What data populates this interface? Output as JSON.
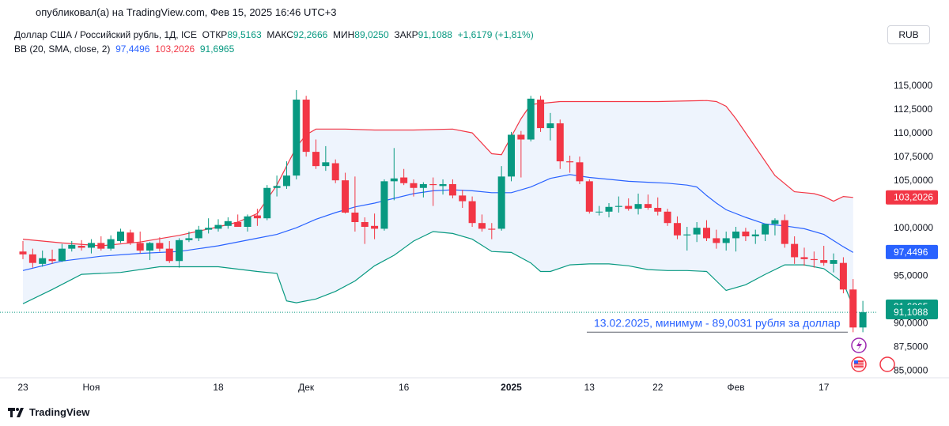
{
  "header": {
    "published": "опубликовал(а) на TradingView.com, Фев 15, 2025 16:46 UTC+3",
    "symbol": "Доллар США / Российский рубль, 1Д, ICE",
    "open_label": "ОТКР",
    "open": "89,5163",
    "high_label": "МАКС",
    "high": "92,2666",
    "low_label": "МИН",
    "low": "89,0250",
    "close_label": "ЗАКР",
    "close": "91,1088",
    "change": "+1,6179 (+1,81%)",
    "indicator": "BB (20, SMA, close, 2)",
    "bb_basis": "97,4496",
    "bb_upper": "103,2026",
    "bb_lower": "91,6965"
  },
  "currency": "RUB",
  "footer": {
    "brand": "TradingView"
  },
  "colors": {
    "up": "#089981",
    "down": "#f23645",
    "upper_band": "#f23645",
    "basis": "#2962ff",
    "lower_band": "#089981",
    "band_fill": "#eef4fd",
    "annotation": "#2962ff"
  },
  "chart_data": {
    "type": "candlestick",
    "x_tick_labels": [
      {
        "label": "23",
        "day": 0
      },
      {
        "label": "Ноя",
        "day": 7
      },
      {
        "label": "18",
        "day": 20
      },
      {
        "label": "Дек",
        "day": 29
      },
      {
        "label": "16",
        "day": 39
      },
      {
        "label": "2025",
        "day": 50
      },
      {
        "label": "13",
        "day": 58
      },
      {
        "label": "22",
        "day": 65
      },
      {
        "label": "Фев",
        "day": 73
      },
      {
        "label": "17",
        "day": 82
      }
    ],
    "y_ticks": [
      "115,0000",
      "112,5000",
      "110,0000",
      "107,5000",
      "105,0000",
      "100,0000",
      "95,0000",
      "90,0000",
      "87,5000",
      "85,0000"
    ],
    "y_tick_values": [
      115,
      112.5,
      110,
      107.5,
      105,
      100,
      95,
      90,
      87.5,
      85
    ],
    "ylim": [
      84.2,
      117.5
    ],
    "price_labels": [
      {
        "text": "103,2026",
        "value": 103.2026,
        "color": "#f23645"
      },
      {
        "text": "97,4496",
        "value": 97.4496,
        "color": "#2962ff"
      },
      {
        "text": "91,6965",
        "value": 91.6965,
        "color": "#089981"
      },
      {
        "text": "91,1088",
        "value": 91.1088,
        "color": "#089981"
      }
    ],
    "annotation": {
      "text": "13.02.2025, минимум - 89,0031 рубля за доллар",
      "value": 89.0031
    },
    "candles": [
      {
        "o": 97.5,
        "h": 98.6,
        "l": 96.7,
        "c": 97.2
      },
      {
        "o": 97.2,
        "h": 97.8,
        "l": 95.8,
        "c": 96.3
      },
      {
        "o": 96.2,
        "h": 97.6,
        "l": 95.9,
        "c": 96.8
      },
      {
        "o": 96.7,
        "h": 97.7,
        "l": 96.2,
        "c": 96.5
      },
      {
        "o": 96.5,
        "h": 98.3,
        "l": 96.4,
        "c": 97.8
      },
      {
        "o": 97.8,
        "h": 98.6,
        "l": 97.5,
        "c": 98.2
      },
      {
        "o": 98.1,
        "h": 98.7,
        "l": 97.6,
        "c": 97.9
      },
      {
        "o": 97.9,
        "h": 98.8,
        "l": 97.3,
        "c": 98.4
      },
      {
        "o": 98.4,
        "h": 99.1,
        "l": 97.6,
        "c": 97.8
      },
      {
        "o": 97.8,
        "h": 99.2,
        "l": 97.6,
        "c": 98.8
      },
      {
        "o": 98.6,
        "h": 99.9,
        "l": 98.4,
        "c": 99.6
      },
      {
        "o": 99.5,
        "h": 99.8,
        "l": 98.2,
        "c": 98.4
      },
      {
        "o": 98.4,
        "h": 99.6,
        "l": 97.3,
        "c": 97.6
      },
      {
        "o": 97.6,
        "h": 98.5,
        "l": 96.6,
        "c": 98.4
      },
      {
        "o": 98.4,
        "h": 99.0,
        "l": 97.5,
        "c": 97.8
      },
      {
        "o": 97.8,
        "h": 98.6,
        "l": 96.3,
        "c": 96.5
      },
      {
        "o": 96.5,
        "h": 98.9,
        "l": 95.8,
        "c": 98.7
      },
      {
        "o": 98.7,
        "h": 99.6,
        "l": 98.5,
        "c": 98.9
      },
      {
        "o": 98.9,
        "h": 100.2,
        "l": 98.6,
        "c": 99.8
      },
      {
        "o": 99.8,
        "h": 101.0,
        "l": 99.4,
        "c": 100.0
      },
      {
        "o": 99.9,
        "h": 100.9,
        "l": 99.6,
        "c": 100.3
      },
      {
        "o": 100.2,
        "h": 101.1,
        "l": 99.9,
        "c": 100.7
      },
      {
        "o": 100.6,
        "h": 101.4,
        "l": 100.2,
        "c": 100.1
      },
      {
        "o": 100.1,
        "h": 101.4,
        "l": 99.6,
        "c": 101.2
      },
      {
        "o": 101.3,
        "h": 102.0,
        "l": 100.2,
        "c": 101.0
      },
      {
        "o": 101.0,
        "h": 104.5,
        "l": 100.8,
        "c": 104.2
      },
      {
        "o": 104.2,
        "h": 105.5,
        "l": 103.3,
        "c": 104.4
      },
      {
        "o": 104.4,
        "h": 107.0,
        "l": 104.1,
        "c": 105.5
      },
      {
        "o": 105.5,
        "h": 114.5,
        "l": 105.1,
        "c": 113.5
      },
      {
        "o": 113.5,
        "h": 113.9,
        "l": 107.5,
        "c": 108.0
      },
      {
        "o": 108.0,
        "h": 109.3,
        "l": 106.2,
        "c": 106.5
      },
      {
        "o": 106.5,
        "h": 108.6,
        "l": 106.0,
        "c": 106.9
      },
      {
        "o": 106.8,
        "h": 107.2,
        "l": 104.7,
        "c": 105.0
      },
      {
        "o": 105.0,
        "h": 105.8,
        "l": 101.5,
        "c": 101.6
      },
      {
        "o": 101.6,
        "h": 105.4,
        "l": 99.6,
        "c": 100.6
      },
      {
        "o": 100.6,
        "h": 101.1,
        "l": 98.3,
        "c": 100.1
      },
      {
        "o": 100.2,
        "h": 101.5,
        "l": 98.8,
        "c": 99.9
      },
      {
        "o": 99.9,
        "h": 105.1,
        "l": 99.7,
        "c": 104.9
      },
      {
        "o": 104.9,
        "h": 108.4,
        "l": 102.9,
        "c": 105.2
      },
      {
        "o": 105.3,
        "h": 106.2,
        "l": 104.5,
        "c": 104.7
      },
      {
        "o": 104.7,
        "h": 105.1,
        "l": 103.3,
        "c": 104.2
      },
      {
        "o": 104.2,
        "h": 104.8,
        "l": 103.2,
        "c": 104.6
      },
      {
        "o": 104.6,
        "h": 105.3,
        "l": 102.3,
        "c": 104.5
      },
      {
        "o": 104.4,
        "h": 105.1,
        "l": 103.5,
        "c": 104.6
      },
      {
        "o": 104.6,
        "h": 105.1,
        "l": 103.1,
        "c": 103.4
      },
      {
        "o": 103.4,
        "h": 104.0,
        "l": 102.1,
        "c": 102.8
      },
      {
        "o": 102.8,
        "h": 103.3,
        "l": 100.1,
        "c": 100.5
      },
      {
        "o": 100.5,
        "h": 101.4,
        "l": 99.6,
        "c": 99.9
      },
      {
        "o": 99.9,
        "h": 100.5,
        "l": 98.8,
        "c": 99.8
      },
      {
        "o": 99.9,
        "h": 106.5,
        "l": 99.7,
        "c": 105.4
      },
      {
        "o": 105.4,
        "h": 110.1,
        "l": 104.9,
        "c": 109.8
      },
      {
        "o": 109.8,
        "h": 110.2,
        "l": 105.3,
        "c": 109.3
      },
      {
        "o": 109.3,
        "h": 113.9,
        "l": 109.1,
        "c": 113.6
      },
      {
        "o": 113.5,
        "h": 113.9,
        "l": 110.1,
        "c": 110.5
      },
      {
        "o": 110.5,
        "h": 112.1,
        "l": 109.2,
        "c": 111.0
      },
      {
        "o": 111.0,
        "h": 111.4,
        "l": 106.2,
        "c": 107.0
      },
      {
        "o": 107.0,
        "h": 107.6,
        "l": 105.8,
        "c": 106.9
      },
      {
        "o": 106.9,
        "h": 107.5,
        "l": 104.6,
        "c": 104.9
      },
      {
        "o": 104.9,
        "h": 105.1,
        "l": 101.5,
        "c": 101.7
      },
      {
        "o": 101.7,
        "h": 102.3,
        "l": 101.3,
        "c": 101.7
      },
      {
        "o": 101.7,
        "h": 102.6,
        "l": 101.1,
        "c": 102.2
      },
      {
        "o": 102.2,
        "h": 103.3,
        "l": 101.6,
        "c": 102.3
      },
      {
        "o": 102.3,
        "h": 103.1,
        "l": 101.8,
        "c": 102.0
      },
      {
        "o": 102.0,
        "h": 103.6,
        "l": 101.4,
        "c": 102.5
      },
      {
        "o": 102.5,
        "h": 103.5,
        "l": 101.9,
        "c": 102.1
      },
      {
        "o": 102.1,
        "h": 103.2,
        "l": 101.3,
        "c": 101.7
      },
      {
        "o": 101.7,
        "h": 102.0,
        "l": 100.2,
        "c": 100.5
      },
      {
        "o": 100.5,
        "h": 101.2,
        "l": 98.8,
        "c": 99.2
      },
      {
        "o": 99.2,
        "h": 100.1,
        "l": 97.6,
        "c": 99.3
      },
      {
        "o": 99.3,
        "h": 100.6,
        "l": 98.5,
        "c": 100.0
      },
      {
        "o": 100.0,
        "h": 100.8,
        "l": 98.6,
        "c": 98.9
      },
      {
        "o": 98.9,
        "h": 99.8,
        "l": 97.8,
        "c": 98.4
      },
      {
        "o": 98.4,
        "h": 99.6,
        "l": 97.6,
        "c": 98.9
      },
      {
        "o": 98.9,
        "h": 100.1,
        "l": 97.5,
        "c": 99.6
      },
      {
        "o": 99.6,
        "h": 100.0,
        "l": 98.6,
        "c": 99.1
      },
      {
        "o": 99.1,
        "h": 99.8,
        "l": 98.3,
        "c": 99.3
      },
      {
        "o": 99.3,
        "h": 100.4,
        "l": 98.6,
        "c": 100.4
      },
      {
        "o": 100.4,
        "h": 101.0,
        "l": 99.2,
        "c": 100.8
      },
      {
        "o": 100.8,
        "h": 101.4,
        "l": 97.9,
        "c": 98.3
      },
      {
        "o": 98.3,
        "h": 99.1,
        "l": 96.2,
        "c": 96.9
      },
      {
        "o": 96.9,
        "h": 97.9,
        "l": 96.0,
        "c": 96.7
      },
      {
        "o": 96.7,
        "h": 97.5,
        "l": 95.8,
        "c": 96.6
      },
      {
        "o": 96.6,
        "h": 98.1,
        "l": 96.0,
        "c": 96.3
      },
      {
        "o": 96.2,
        "h": 97.3,
        "l": 95.3,
        "c": 96.6
      },
      {
        "o": 96.3,
        "h": 96.9,
        "l": 93.1,
        "c": 93.5
      },
      {
        "o": 93.5,
        "h": 94.6,
        "l": 89.0,
        "c": 89.5
      },
      {
        "o": 89.5,
        "h": 92.3,
        "l": 89.0,
        "c": 91.1
      }
    ],
    "bands": {
      "upper": [
        [
          0,
          98.8
        ],
        [
          4,
          98.4
        ],
        [
          8,
          98.1
        ],
        [
          12,
          98.5
        ],
        [
          16,
          99.2
        ],
        [
          20,
          100.1
        ],
        [
          22,
          100.6
        ],
        [
          24,
          101.5
        ],
        [
          25,
          103.0
        ],
        [
          26,
          104.5
        ],
        [
          27,
          106.5
        ],
        [
          28,
          108.5
        ],
        [
          29,
          109.8
        ],
        [
          30,
          110.4
        ],
        [
          33,
          110.4
        ],
        [
          36,
          110.3
        ],
        [
          40,
          110.3
        ],
        [
          44,
          110.4
        ],
        [
          46,
          110.0
        ],
        [
          48,
          107.8
        ],
        [
          49,
          107.7
        ],
        [
          50,
          109.6
        ],
        [
          51,
          111.5
        ],
        [
          52,
          113.0
        ],
        [
          55,
          113.3
        ],
        [
          60,
          113.3
        ],
        [
          65,
          113.3
        ],
        [
          70,
          113.4
        ],
        [
          71,
          113.3
        ],
        [
          72,
          112.8
        ],
        [
          73,
          111.5
        ],
        [
          75,
          108.5
        ],
        [
          77,
          105.5
        ],
        [
          79,
          103.8
        ],
        [
          81,
          103.6
        ],
        [
          82,
          103.3
        ],
        [
          83,
          102.8
        ],
        [
          84,
          103.3
        ],
        [
          85,
          103.2
        ]
      ],
      "basis": [
        [
          0,
          95.5
        ],
        [
          4,
          96.5
        ],
        [
          8,
          97.0
        ],
        [
          12,
          97.3
        ],
        [
          16,
          97.5
        ],
        [
          20,
          98.1
        ],
        [
          24,
          98.9
        ],
        [
          26,
          99.3
        ],
        [
          28,
          100.0
        ],
        [
          30,
          100.9
        ],
        [
          32,
          101.6
        ],
        [
          34,
          102.2
        ],
        [
          36,
          102.6
        ],
        [
          38,
          103.1
        ],
        [
          40,
          103.6
        ],
        [
          42,
          103.9
        ],
        [
          44,
          104.0
        ],
        [
          46,
          103.9
        ],
        [
          48,
          103.7
        ],
        [
          50,
          103.7
        ],
        [
          52,
          104.3
        ],
        [
          54,
          105.2
        ],
        [
          56,
          105.6
        ],
        [
          58,
          105.3
        ],
        [
          60,
          105.1
        ],
        [
          62,
          104.9
        ],
        [
          64,
          104.8
        ],
        [
          66,
          104.7
        ],
        [
          68,
          104.5
        ],
        [
          69,
          104.3
        ],
        [
          70,
          103.4
        ],
        [
          71,
          102.6
        ],
        [
          72,
          101.9
        ],
        [
          74,
          101.1
        ],
        [
          76,
          100.4
        ],
        [
          78,
          100.2
        ],
        [
          80,
          99.9
        ],
        [
          82,
          99.3
        ],
        [
          84,
          98.0
        ],
        [
          85,
          97.4
        ]
      ],
      "lower": [
        [
          0,
          92.0
        ],
        [
          3,
          93.5
        ],
        [
          6,
          95.1
        ],
        [
          10,
          95.3
        ],
        [
          14,
          95.9
        ],
        [
          16,
          95.9
        ],
        [
          20,
          95.9
        ],
        [
          24,
          95.4
        ],
        [
          26,
          95.2
        ],
        [
          27,
          92.3
        ],
        [
          28,
          92.1
        ],
        [
          30,
          92.5
        ],
        [
          32,
          93.3
        ],
        [
          34,
          94.4
        ],
        [
          36,
          96.0
        ],
        [
          38,
          97.1
        ],
        [
          40,
          98.6
        ],
        [
          42,
          99.6
        ],
        [
          44,
          99.4
        ],
        [
          46,
          98.8
        ],
        [
          48,
          97.5
        ],
        [
          50,
          97.4
        ],
        [
          52,
          96.3
        ],
        [
          53,
          95.4
        ],
        [
          54,
          95.4
        ],
        [
          56,
          96.1
        ],
        [
          58,
          96.2
        ],
        [
          60,
          96.2
        ],
        [
          62,
          96.0
        ],
        [
          64,
          95.6
        ],
        [
          66,
          95.5
        ],
        [
          68,
          95.5
        ],
        [
          70,
          95.4
        ],
        [
          71,
          94.4
        ],
        [
          72,
          93.4
        ],
        [
          74,
          94.0
        ],
        [
          76,
          95.1
        ],
        [
          78,
          96.1
        ],
        [
          80,
          96.1
        ],
        [
          82,
          95.7
        ],
        [
          84,
          94.2
        ],
        [
          85,
          91.7
        ]
      ]
    }
  }
}
